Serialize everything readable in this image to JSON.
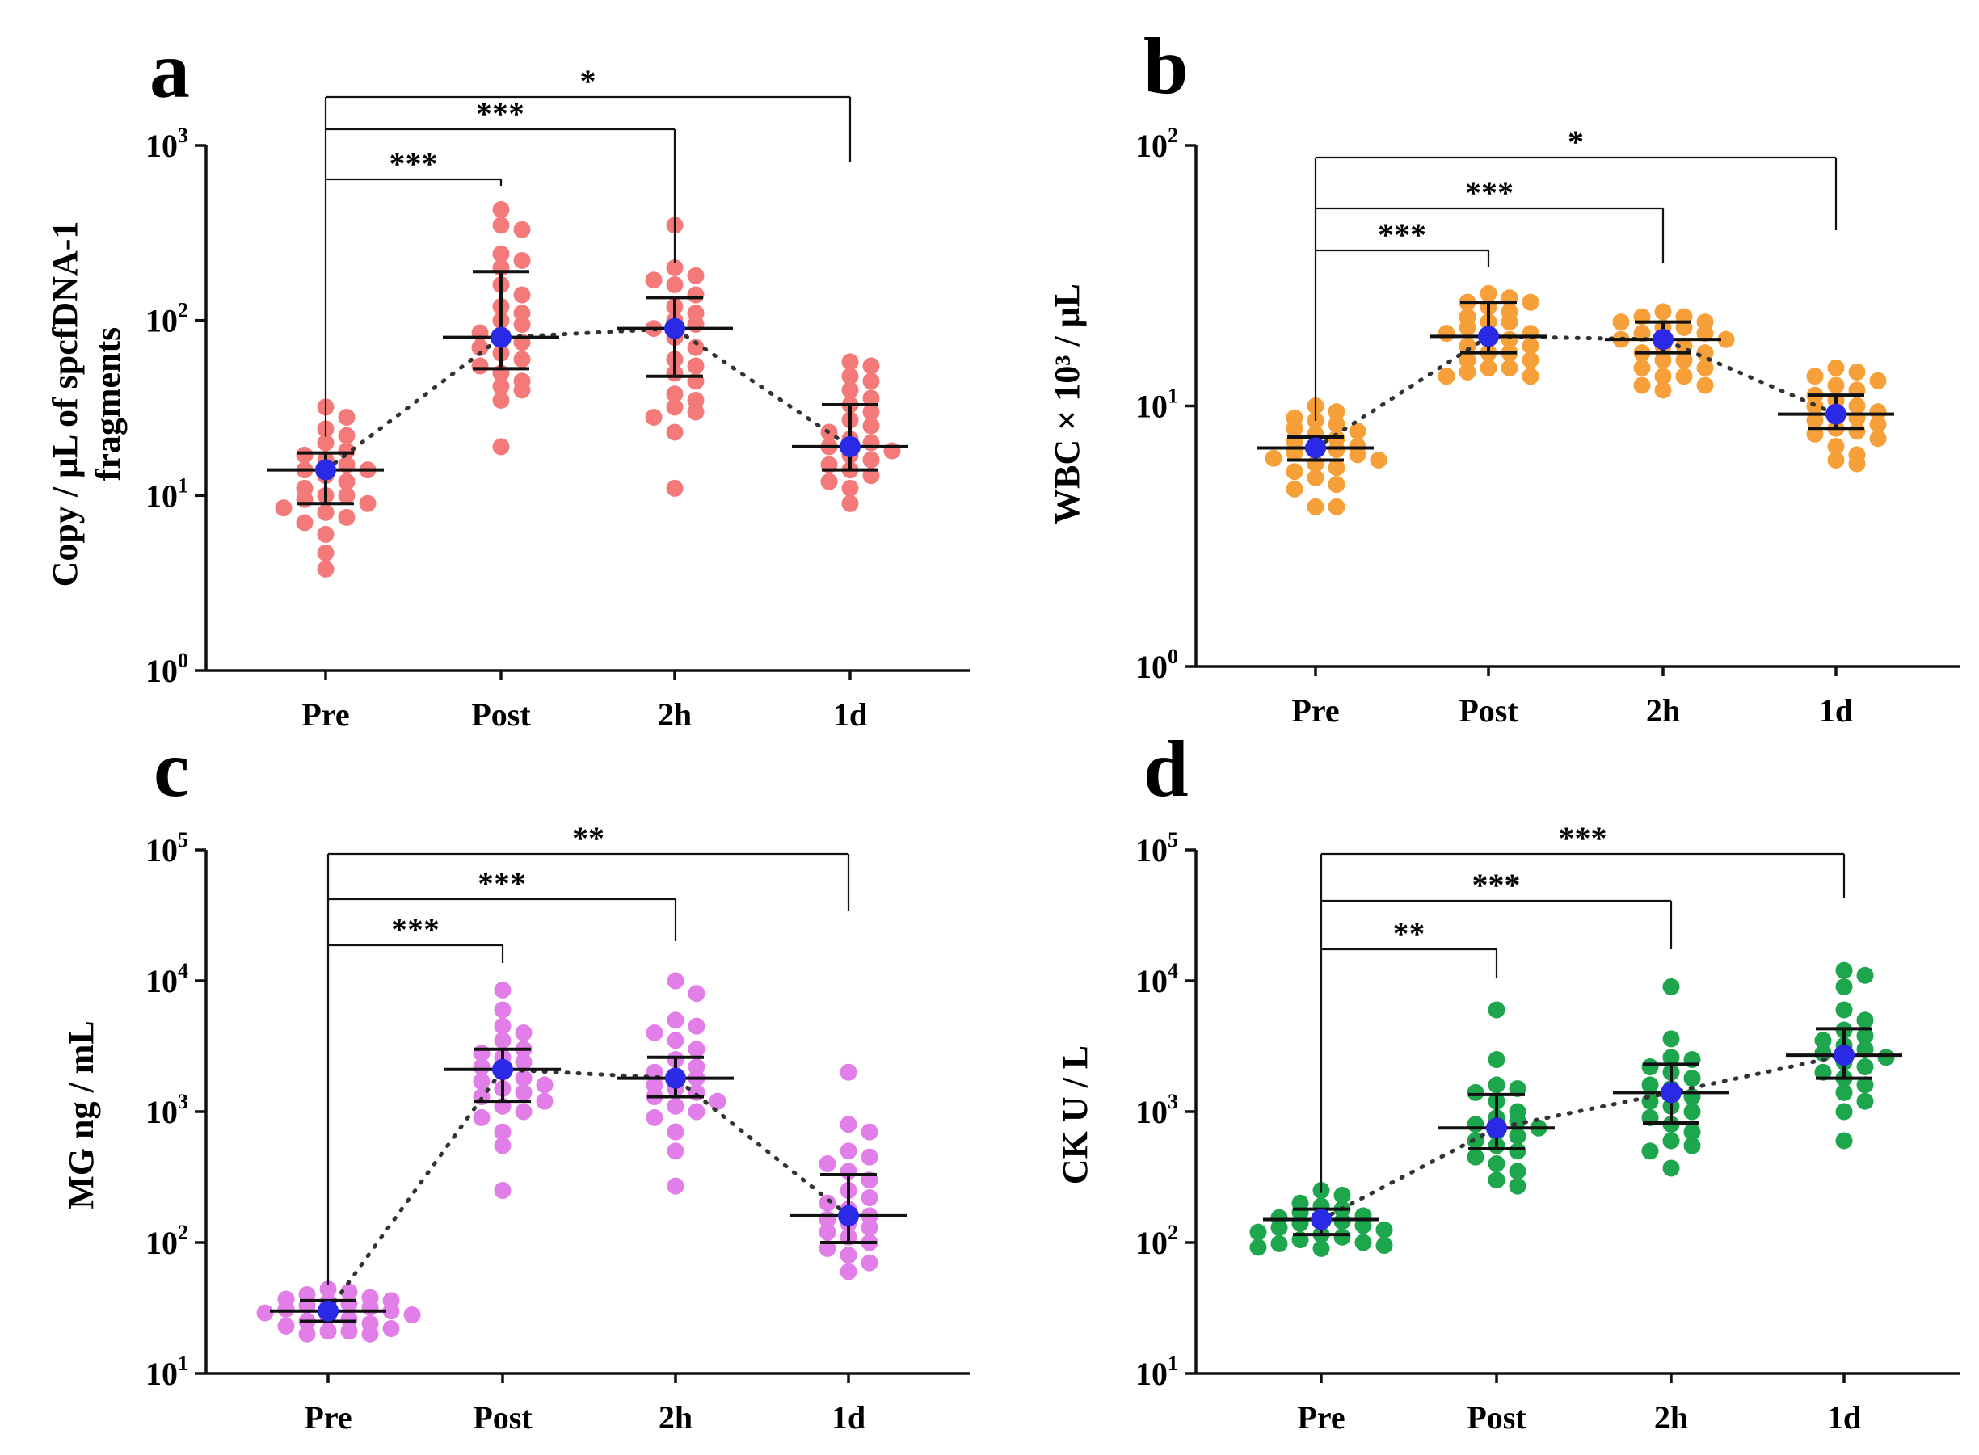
{
  "chart_data": [
    {
      "id": "a",
      "type": "scatter",
      "panel_label": "a",
      "ylabel_lines": [
        "Copy / μL of spcfDNA-1",
        "fragments"
      ],
      "yscale": "log",
      "ylim": [
        1,
        1000
      ],
      "yticks": [
        {
          "value": 1,
          "base": "10",
          "exp": "0"
        },
        {
          "value": 10,
          "base": "10",
          "exp": "1"
        },
        {
          "value": 100,
          "base": "10",
          "exp": "2"
        },
        {
          "value": 1000,
          "base": "10",
          "exp": "3"
        }
      ],
      "categories": [
        "Pre",
        "Post",
        "2h",
        "1d"
      ],
      "color": "#f47a7a",
      "points": [
        [
          32,
          28,
          24,
          22,
          20,
          18,
          17,
          16,
          15,
          14,
          14,
          13,
          12,
          11,
          10,
          10,
          9.5,
          9,
          8.5,
          8,
          7.5,
          7,
          6,
          4.7,
          3.8
        ],
        [
          430,
          350,
          330,
          240,
          220,
          200,
          160,
          140,
          120,
          110,
          100,
          95,
          85,
          80,
          75,
          70,
          65,
          60,
          55,
          50,
          45,
          42,
          40,
          35,
          19
        ],
        [
          350,
          200,
          180,
          170,
          160,
          140,
          120,
          110,
          100,
          95,
          90,
          80,
          70,
          60,
          55,
          50,
          45,
          38,
          35,
          32,
          30,
          28,
          23,
          11
        ],
        [
          58,
          55,
          48,
          45,
          40,
          36,
          33,
          30,
          27,
          25,
          23,
          21,
          20,
          19,
          18,
          17,
          16,
          15,
          14,
          13,
          12,
          11,
          9
        ]
      ],
      "mean": [
        14,
        80,
        90,
        19
      ],
      "err_upper": [
        17.5,
        190,
        135,
        33
      ],
      "err_lower": [
        9,
        53,
        48,
        14
      ],
      "brackets": [
        {
          "from": "Pre",
          "to": "Post",
          "label": "***"
        },
        {
          "from": "Pre",
          "to": "2h",
          "label": "***"
        },
        {
          "from": "Pre",
          "to": "1d",
          "label": "*"
        }
      ]
    },
    {
      "id": "b",
      "type": "scatter",
      "panel_label": "b",
      "ylabel_lines": [
        "WBC × 10³ / μL"
      ],
      "yscale": "log",
      "ylim": [
        1,
        100
      ],
      "yticks": [
        {
          "value": 1,
          "base": "10",
          "exp": "0"
        },
        {
          "value": 10,
          "base": "10",
          "exp": "1"
        },
        {
          "value": 100,
          "base": "10",
          "exp": "2"
        }
      ],
      "categories": [
        "Pre",
        "Post",
        "2h",
        "1d"
      ],
      "color": "#f7a03a",
      "points": [
        [
          10,
          9.5,
          9,
          8.8,
          8.5,
          8.2,
          8,
          7.8,
          7.5,
          7.3,
          7,
          6.9,
          6.8,
          6.6,
          6.5,
          6.3,
          6.2,
          6,
          5.8,
          5.6,
          5.3,
          5,
          4.8,
          4.1,
          4.1
        ],
        [
          27,
          26,
          25,
          25,
          24,
          23,
          22,
          21,
          21,
          20,
          19,
          19,
          18,
          18,
          17,
          17,
          16,
          16,
          15,
          15,
          14,
          14,
          13.5,
          13,
          13
        ],
        [
          23,
          22,
          22,
          21,
          21,
          20,
          20,
          19,
          19,
          18,
          18,
          17,
          17,
          16,
          16,
          15,
          15,
          14,
          14,
          13,
          13,
          12,
          12,
          11.5
        ],
        [
          14,
          13.5,
          13,
          12.5,
          12,
          11.5,
          11,
          10.5,
          10,
          10,
          9.5,
          9.2,
          9,
          8.8,
          8.5,
          8.2,
          8,
          7.8,
          7.5,
          7,
          6.5,
          6.2,
          6
        ]
      ],
      "mean": [
        6.9,
        18.5,
        18,
        9.3
      ],
      "err_upper": [
        7.6,
        25,
        21,
        11
      ],
      "err_lower": [
        6.2,
        16,
        16,
        8.2
      ],
      "brackets": [
        {
          "from": "Pre",
          "to": "Post",
          "label": "***"
        },
        {
          "from": "Pre",
          "to": "2h",
          "label": "***"
        },
        {
          "from": "Pre",
          "to": "1d",
          "label": "*"
        }
      ]
    },
    {
      "id": "c",
      "type": "scatter",
      "panel_label": "c",
      "ylabel_lines": [
        "MG ng / mL"
      ],
      "yscale": "log",
      "ylim": [
        10,
        100000
      ],
      "yticks": [
        {
          "value": 10,
          "base": "10",
          "exp": "1"
        },
        {
          "value": 100,
          "base": "10",
          "exp": "2"
        },
        {
          "value": 1000,
          "base": "10",
          "exp": "3"
        },
        {
          "value": 10000,
          "base": "10",
          "exp": "4"
        },
        {
          "value": 100000,
          "base": "10",
          "exp": "5"
        }
      ],
      "categories": [
        "Pre",
        "Post",
        "2h",
        "1d"
      ],
      "color": "#e27ee8",
      "points": [
        [
          44,
          42,
          40,
          38,
          37,
          36,
          35,
          34,
          33,
          32,
          31,
          30,
          29,
          28,
          27,
          26,
          25,
          24,
          23,
          22,
          21,
          21,
          20,
          20
        ],
        [
          8500,
          6000,
          4500,
          4000,
          3500,
          3000,
          2800,
          2600,
          2400,
          2200,
          2000,
          1800,
          1700,
          1600,
          1500,
          1400,
          1300,
          1200,
          1100,
          1000,
          900,
          700,
          550,
          250
        ],
        [
          10000,
          8000,
          5000,
          4500,
          4000,
          3500,
          3000,
          2500,
          2200,
          2000,
          1900,
          1800,
          1600,
          1500,
          1400,
          1300,
          1200,
          1100,
          1000,
          900,
          700,
          500,
          270
        ],
        [
          2000,
          800,
          700,
          500,
          450,
          400,
          350,
          300,
          250,
          220,
          200,
          180,
          160,
          150,
          140,
          130,
          120,
          110,
          100,
          90,
          80,
          70,
          60
        ]
      ],
      "mean": [
        30,
        2100,
        1800,
        160
      ],
      "err_upper": [
        36,
        3000,
        2600,
        330
      ],
      "err_lower": [
        25,
        1200,
        1300,
        100
      ],
      "brackets": [
        {
          "from": "Pre",
          "to": "Post",
          "label": "***"
        },
        {
          "from": "Pre",
          "to": "2h",
          "label": "***"
        },
        {
          "from": "Pre",
          "to": "1d",
          "label": "**"
        }
      ]
    },
    {
      "id": "d",
      "type": "scatter",
      "panel_label": "d",
      "ylabel_lines": [
        "CK U / L"
      ],
      "yscale": "log",
      "ylim": [
        10,
        100000
      ],
      "yticks": [
        {
          "value": 10,
          "base": "10",
          "exp": "1"
        },
        {
          "value": 100,
          "base": "10",
          "exp": "2"
        },
        {
          "value": 1000,
          "base": "10",
          "exp": "3"
        },
        {
          "value": 10000,
          "base": "10",
          "exp": "4"
        },
        {
          "value": 100000,
          "base": "10",
          "exp": "5"
        }
      ],
      "categories": [
        "Pre",
        "Post",
        "2h",
        "1d"
      ],
      "color": "#1da64c",
      "points": [
        [
          250,
          230,
          200,
          190,
          180,
          170,
          160,
          155,
          150,
          145,
          140,
          135,
          130,
          125,
          120,
          115,
          110,
          105,
          100,
          98,
          95,
          92,
          90
        ],
        [
          6000,
          2500,
          1600,
          1500,
          1400,
          1200,
          1000,
          900,
          850,
          800,
          750,
          700,
          650,
          600,
          550,
          500,
          450,
          400,
          350,
          300,
          270
        ],
        [
          9000,
          3600,
          2600,
          2500,
          2200,
          2000,
          1800,
          1600,
          1500,
          1300,
          1200,
          1100,
          1000,
          900,
          800,
          700,
          600,
          550,
          500,
          370
        ],
        [
          12000,
          11000,
          9000,
          6000,
          5000,
          4200,
          3800,
          3500,
          3200,
          3000,
          2800,
          2600,
          2400,
          2200,
          2000,
          1800,
          1600,
          1400,
          1200,
          1000,
          600
        ]
      ],
      "mean": [
        150,
        750,
        1400,
        2700
      ],
      "err_upper": [
        180,
        1350,
        2300,
        4300
      ],
      "err_lower": [
        115,
        520,
        820,
        1800
      ],
      "brackets": [
        {
          "from": "Pre",
          "to": "Post",
          "label": "**"
        },
        {
          "from": "Pre",
          "to": "2h",
          "label": "***"
        },
        {
          "from": "Pre",
          "to": "1d",
          "label": "***"
        }
      ]
    }
  ]
}
